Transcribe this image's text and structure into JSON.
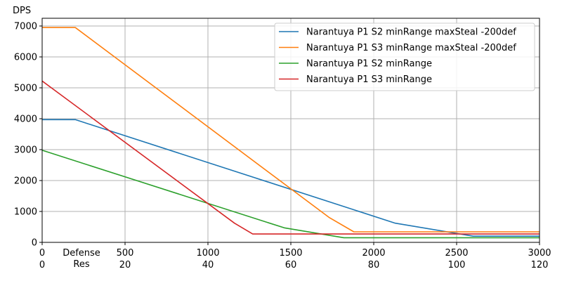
{
  "chart_data": {
    "type": "line",
    "ylabel": "DPS",
    "xlabel_def": "Defense",
    "xlabel_res": "Res",
    "xlim": [
      0,
      3000
    ],
    "ylim": [
      0,
      7250
    ],
    "grid": true,
    "legend_position": "top-right",
    "x_ticks_def": [
      0,
      500,
      1000,
      1500,
      2000,
      2500,
      3000
    ],
    "x_ticks_res": [
      0,
      20,
      40,
      60,
      80,
      100,
      120
    ],
    "y_ticks": [
      0,
      1000,
      2000,
      3000,
      4000,
      5000,
      6000,
      7000
    ],
    "series": [
      {
        "name": "Narantuya P1 S2 minRange maxSteal -200def",
        "color": "#1f77b4",
        "x": [
          0,
          200,
          2130,
          2600,
          3000
        ],
        "y": [
          3970,
          3970,
          620,
          200,
          200
        ]
      },
      {
        "name": "Narantuya P1 S3 minRange maxSteal -200def",
        "color": "#ff7f0e",
        "x": [
          0,
          200,
          1730,
          1880,
          3000
        ],
        "y": [
          6950,
          6950,
          810,
          340,
          340
        ]
      },
      {
        "name": "Narantuya P1 S2 minRange",
        "color": "#2ca02c",
        "x": [
          0,
          1460,
          1820,
          3000
        ],
        "y": [
          2980,
          470,
          150,
          150
        ]
      },
      {
        "name": "Narantuya P1 S3 minRange",
        "color": "#d62728",
        "x": [
          0,
          1160,
          1270,
          3000
        ],
        "y": [
          5220,
          620,
          270,
          270
        ]
      }
    ]
  }
}
